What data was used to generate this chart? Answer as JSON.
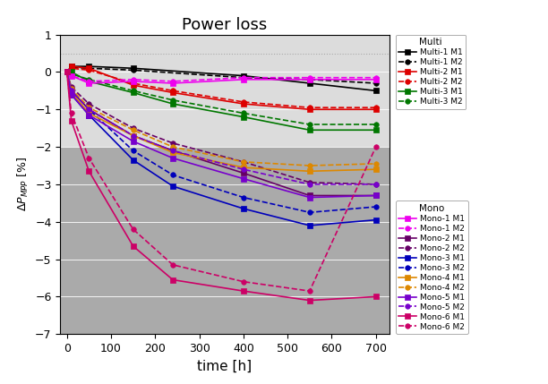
{
  "title": "Power loss",
  "xlabel": "time [h]",
  "ylabel": "\\u0394P_MPP [%]",
  "xlim": [
    -15,
    730
  ],
  "ylim": [
    -7,
    1
  ],
  "yticks": [
    -7,
    -6,
    -5,
    -4,
    -3,
    -2,
    -1,
    0,
    1
  ],
  "xticks": [
    0,
    100,
    200,
    300,
    400,
    500,
    600,
    700
  ],
  "hline_y": 0.5,
  "series": [
    {
      "label": "Multi-1 M1",
      "color": "#000000",
      "linestyle": "-",
      "marker": "s",
      "x": [
        0,
        10,
        50,
        150,
        400,
        550,
        700
      ],
      "y": [
        0,
        0.15,
        0.15,
        0.1,
        -0.1,
        -0.3,
        -0.5
      ]
    },
    {
      "label": "Multi-1 M2",
      "color": "#000000",
      "linestyle": "--",
      "marker": "o",
      "x": [
        0,
        10,
        50,
        150,
        400,
        550,
        700
      ],
      "y": [
        0,
        0.12,
        0.1,
        0.05,
        -0.15,
        -0.2,
        -0.3
      ]
    },
    {
      "label": "Multi-2 M1",
      "color": "#dd0000",
      "linestyle": "-",
      "marker": "s",
      "x": [
        0,
        10,
        50,
        150,
        240,
        400,
        550,
        700
      ],
      "y": [
        0,
        0.15,
        0.1,
        -0.35,
        -0.55,
        -0.85,
        -1.0,
        -1.0
      ]
    },
    {
      "label": "Multi-2 M2",
      "color": "#dd0000",
      "linestyle": "--",
      "marker": "o",
      "x": [
        0,
        10,
        50,
        150,
        240,
        400,
        550,
        700
      ],
      "y": [
        0,
        0.1,
        0.05,
        -0.3,
        -0.5,
        -0.8,
        -0.95,
        -0.95
      ]
    },
    {
      "label": "Multi-3 M1",
      "color": "#007700",
      "linestyle": "-",
      "marker": "s",
      "x": [
        0,
        10,
        50,
        150,
        240,
        400,
        550,
        700
      ],
      "y": [
        0,
        0.0,
        -0.25,
        -0.55,
        -0.85,
        -1.2,
        -1.55,
        -1.55
      ]
    },
    {
      "label": "Multi-3 M2",
      "color": "#007700",
      "linestyle": "--",
      "marker": "o",
      "x": [
        0,
        10,
        50,
        150,
        240,
        400,
        550,
        700
      ],
      "y": [
        0,
        -0.05,
        -0.2,
        -0.5,
        -0.75,
        -1.1,
        -1.4,
        -1.4
      ]
    },
    {
      "label": "Mono-1 M1",
      "color": "#ee00ee",
      "linestyle": "-",
      "marker": "s",
      "x": [
        0,
        10,
        50,
        150,
        240,
        400,
        550,
        700
      ],
      "y": [
        0,
        -0.1,
        -0.3,
        -0.25,
        -0.3,
        -0.2,
        -0.2,
        -0.2
      ]
    },
    {
      "label": "Mono-1 M2",
      "color": "#ee00ee",
      "linestyle": "--",
      "marker": "o",
      "x": [
        0,
        10,
        50,
        150,
        240,
        400,
        550,
        700
      ],
      "y": [
        0,
        -0.1,
        -0.25,
        -0.2,
        -0.25,
        -0.15,
        -0.15,
        -0.15
      ]
    },
    {
      "label": "Mono-2 M1",
      "color": "#660066",
      "linestyle": "-",
      "marker": "s",
      "x": [
        0,
        10,
        50,
        150,
        240,
        400,
        550,
        700
      ],
      "y": [
        0,
        -0.5,
        -1.0,
        -1.7,
        -2.1,
        -2.7,
        -3.3,
        -3.3
      ]
    },
    {
      "label": "Mono-2 M2",
      "color": "#660066",
      "linestyle": "--",
      "marker": "o",
      "x": [
        0,
        10,
        50,
        150,
        240,
        400,
        550,
        700
      ],
      "y": [
        0,
        -0.4,
        -0.85,
        -1.5,
        -1.9,
        -2.4,
        -2.95,
        -3.0
      ]
    },
    {
      "label": "Mono-3 M1",
      "color": "#0000bb",
      "linestyle": "-",
      "marker": "s",
      "x": [
        0,
        10,
        50,
        150,
        240,
        400,
        550,
        700
      ],
      "y": [
        0,
        -0.6,
        -1.15,
        -2.35,
        -3.05,
        -3.65,
        -4.1,
        -3.95
      ]
    },
    {
      "label": "Mono-3 M2",
      "color": "#0000bb",
      "linestyle": "--",
      "marker": "o",
      "x": [
        0,
        10,
        50,
        150,
        240,
        400,
        550,
        700
      ],
      "y": [
        0,
        -0.5,
        -1.0,
        -2.1,
        -2.75,
        -3.35,
        -3.75,
        -3.6
      ]
    },
    {
      "label": "Mono-4 M1",
      "color": "#dd8800",
      "linestyle": "-",
      "marker": "s",
      "x": [
        0,
        10,
        50,
        150,
        240,
        400,
        550,
        700
      ],
      "y": [
        0,
        -0.55,
        -1.1,
        -1.7,
        -2.15,
        -2.55,
        -2.65,
        -2.6
      ]
    },
    {
      "label": "Mono-4 M2",
      "color": "#dd8800",
      "linestyle": "--",
      "marker": "o",
      "x": [
        0,
        10,
        50,
        150,
        240,
        400,
        550,
        700
      ],
      "y": [
        0,
        -0.45,
        -0.95,
        -1.55,
        -2.0,
        -2.4,
        -2.5,
        -2.45
      ]
    },
    {
      "label": "Mono-5 M1",
      "color": "#7700cc",
      "linestyle": "-",
      "marker": "s",
      "x": [
        0,
        10,
        50,
        150,
        240,
        400,
        550,
        700
      ],
      "y": [
        0,
        -0.6,
        -1.15,
        -1.85,
        -2.3,
        -2.85,
        -3.35,
        -3.3
      ]
    },
    {
      "label": "Mono-5 M2",
      "color": "#7700cc",
      "linestyle": "--",
      "marker": "o",
      "x": [
        0,
        10,
        50,
        150,
        240,
        400,
        550,
        700
      ],
      "y": [
        0,
        -0.5,
        -1.0,
        -1.7,
        -2.1,
        -2.6,
        -3.0,
        -3.0
      ]
    },
    {
      "label": "Mono-6 M1",
      "color": "#cc0066",
      "linestyle": "-",
      "marker": "s",
      "x": [
        0,
        10,
        50,
        150,
        240,
        400,
        550,
        700
      ],
      "y": [
        0,
        -1.3,
        -2.65,
        -4.65,
        -5.55,
        -5.85,
        -6.1,
        -6.0
      ]
    },
    {
      "label": "Mono-6 M2",
      "color": "#cc0066",
      "linestyle": "--",
      "marker": "o",
      "x": [
        0,
        10,
        50,
        150,
        240,
        400,
        550,
        700
      ],
      "y": [
        0,
        -1.1,
        -2.3,
        -4.2,
        -5.15,
        -5.6,
        -5.85,
        -2.0
      ]
    }
  ],
  "multi_labels": [
    "Multi-1 M1",
    "Multi-1 M2",
    "Multi-2 M1",
    "Multi-2 M2",
    "Multi-3 M1",
    "Multi-3 M2"
  ],
  "mono_labels": [
    "Mono-1 M1",
    "Mono-1 M2",
    "Mono-2 M1",
    "Mono-2 M2",
    "Mono-3 M1",
    "Mono-3 M2",
    "Mono-4 M1",
    "Mono-4 M2",
    "Mono-5 M1",
    "Mono-5 M2",
    "Mono-6 M1",
    "Mono-6 M2"
  ],
  "fig_width": 6.12,
  "fig_height": 4.29,
  "dpi": 100
}
